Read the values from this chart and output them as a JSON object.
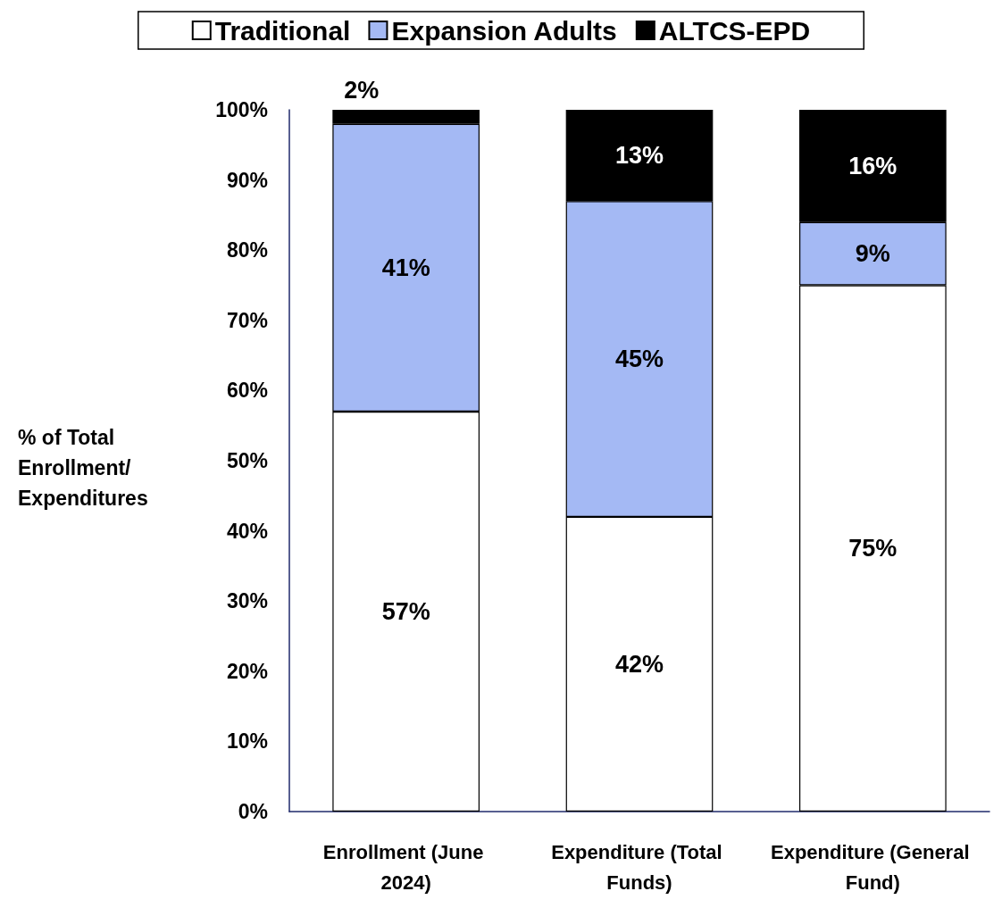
{
  "chart_data": {
    "type": "bar",
    "stacked": true,
    "ylabel": "% of Total Enrollment/ Expenditures",
    "categories": [
      "Enrollment (June 2024)",
      "Expenditure (Total Funds)",
      "Expenditure (General Fund)"
    ],
    "series": [
      {
        "name": "Traditional",
        "color": "#ffffff",
        "values": [
          57,
          42,
          75
        ],
        "value_labels": [
          "57%",
          "42%",
          "75%"
        ]
      },
      {
        "name": "Expansion Adults",
        "color": "#a4b9f4",
        "values": [
          41,
          45,
          9
        ],
        "value_labels": [
          "41%",
          "45%",
          "9%"
        ]
      },
      {
        "name": "ALTCS-EPD",
        "color": "#000000",
        "values": [
          2,
          13,
          16
        ],
        "value_labels": [
          "2%",
          "13%",
          "16%"
        ]
      }
    ],
    "ylim": [
      0,
      100
    ],
    "yticks": [
      {
        "value": 0,
        "label": "0%"
      },
      {
        "value": 10,
        "label": "10%"
      },
      {
        "value": 20,
        "label": "20%"
      },
      {
        "value": 30,
        "label": "30%"
      },
      {
        "value": 40,
        "label": "40%"
      },
      {
        "value": 50,
        "label": "50%"
      },
      {
        "value": 60,
        "label": "60%"
      },
      {
        "value": 70,
        "label": "70%"
      },
      {
        "value": 80,
        "label": "80%"
      },
      {
        "value": 90,
        "label": "90%"
      },
      {
        "value": 100,
        "label": "100%"
      }
    ],
    "grid": false,
    "legend": "top"
  }
}
